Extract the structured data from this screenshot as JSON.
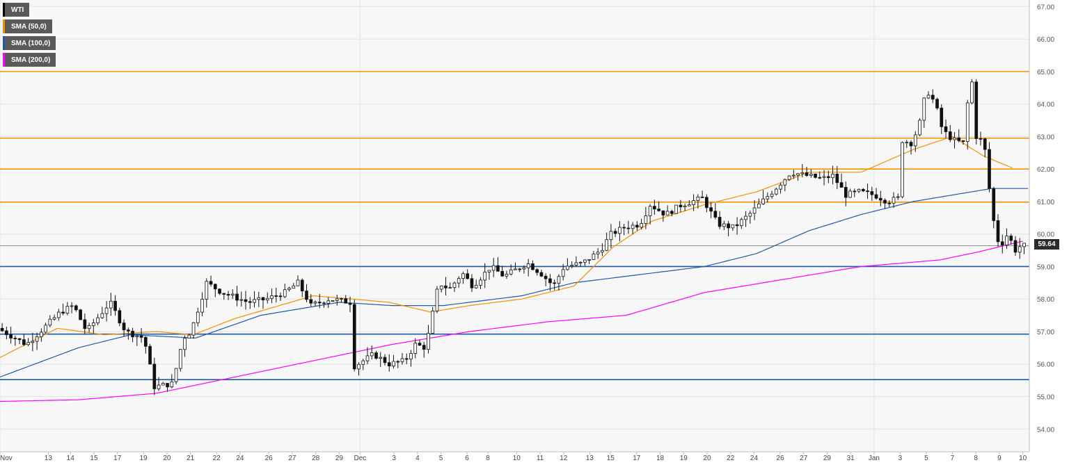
{
  "legend": [
    {
      "label": "WTI",
      "color": "#000000"
    },
    {
      "label": "SMA (50,0)",
      "color": "#f39200"
    },
    {
      "label": "SMA (100,0)",
      "color": "#1f5aa6"
    },
    {
      "label": "SMA (200,0)",
      "color": "#ff00ff"
    }
  ],
  "last_price_label": "59.64",
  "chart_data": {
    "type": "candlestick",
    "symbol": "WTI",
    "timeframe": "4H",
    "ylim": [
      53.3,
      67.2
    ],
    "y_ticks": [
      "54.00",
      "55.00",
      "56.00",
      "57.00",
      "58.00",
      "59.00",
      "60.00",
      "61.00",
      "62.00",
      "63.00",
      "64.00",
      "65.00",
      "66.00",
      "67.00"
    ],
    "x_ticks": [
      "Nov",
      "13",
      "14",
      "15",
      "17",
      "19",
      "20",
      "21",
      "22",
      "24",
      "26",
      "27",
      "28",
      "29",
      "Dec",
      "3",
      "4",
      "5",
      "6",
      "8",
      "10",
      "11",
      "12",
      "13",
      "15",
      "17",
      "18",
      "19",
      "20",
      "22",
      "24",
      "26",
      "27",
      "29",
      "31",
      "Jan",
      "3",
      "5",
      "7",
      "8",
      "9",
      "10"
    ],
    "x_ticks_day_index": [
      0,
      1.85,
      2.7,
      3.6,
      4.5,
      5.5,
      6.4,
      7.3,
      8.3,
      9.2,
      10.3,
      11.2,
      12.1,
      13.0,
      13.8,
      15.1,
      16.0,
      16.9,
      17.9,
      18.7,
      19.8,
      20.7,
      21.6,
      22.6,
      23.4,
      24.4,
      25.3,
      26.2,
      27.1,
      28.0,
      28.9,
      29.9,
      30.8,
      31.7,
      32.6,
      33.5,
      34.5,
      35.5,
      36.5,
      37.4,
      38.3,
      39.2
    ],
    "horizontal_levels": [
      {
        "value": 65.0,
        "color": "#f39200"
      },
      {
        "value": 62.95,
        "color": "#f39200"
      },
      {
        "value": 62.0,
        "color": "#f39200"
      },
      {
        "value": 60.98,
        "color": "#f39200"
      },
      {
        "value": 59.0,
        "color": "#1f5aa6"
      },
      {
        "value": 56.92,
        "color": "#1f5aa6"
      },
      {
        "value": 55.52,
        "color": "#1f5aa6"
      }
    ],
    "last_price": 59.64,
    "anchors": [
      [
        0,
        57.1
      ],
      [
        1.1,
        56.6
      ],
      [
        2.4,
        57.6
      ],
      [
        2.9,
        57.8
      ],
      [
        3.4,
        57.0
      ],
      [
        4.3,
        57.9
      ],
      [
        4.9,
        57.0
      ],
      [
        5.6,
        56.8
      ],
      [
        6.0,
        55.3
      ],
      [
        6.7,
        55.4
      ],
      [
        7.1,
        56.8
      ],
      [
        7.4,
        57.0
      ],
      [
        8.0,
        58.5
      ],
      [
        8.6,
        58.2
      ],
      [
        9.6,
        57.9
      ],
      [
        10.3,
        58.0
      ],
      [
        11.0,
        58.2
      ],
      [
        11.5,
        58.5
      ],
      [
        12.0,
        57.8
      ],
      [
        12.7,
        58.0
      ],
      [
        13.5,
        57.9
      ],
      [
        13.6,
        55.9
      ],
      [
        14.4,
        56.3
      ],
      [
        15.0,
        56.0
      ],
      [
        15.6,
        56.1
      ],
      [
        16.0,
        56.6
      ],
      [
        16.4,
        56.5
      ],
      [
        16.9,
        58.5
      ],
      [
        17.3,
        58.3
      ],
      [
        17.8,
        58.8
      ],
      [
        18.2,
        58.4
      ],
      [
        18.9,
        59.0
      ],
      [
        19.4,
        58.7
      ],
      [
        20.3,
        59.1
      ],
      [
        20.8,
        58.8
      ],
      [
        21.3,
        58.4
      ],
      [
        21.7,
        59.0
      ],
      [
        22.4,
        59.1
      ],
      [
        23.1,
        59.5
      ],
      [
        23.5,
        60.0
      ],
      [
        24.0,
        60.2
      ],
      [
        24.6,
        60.3
      ],
      [
        25.0,
        60.9
      ],
      [
        25.6,
        60.6
      ],
      [
        26.2,
        60.9
      ],
      [
        27.0,
        61.1
      ],
      [
        27.6,
        60.3
      ],
      [
        28.2,
        60.2
      ],
      [
        28.8,
        60.6
      ],
      [
        29.3,
        61.0
      ],
      [
        29.8,
        61.4
      ],
      [
        30.4,
        61.9
      ],
      [
        31.0,
        61.8
      ],
      [
        31.6,
        61.7
      ],
      [
        32.0,
        61.8
      ],
      [
        32.5,
        61.2
      ],
      [
        33.0,
        61.3
      ],
      [
        33.6,
        61.2
      ],
      [
        34.1,
        61.0
      ],
      [
        34.5,
        61.1
      ],
      [
        34.6,
        62.9
      ],
      [
        35.0,
        62.8
      ],
      [
        35.3,
        63.3
      ],
      [
        35.5,
        64.1
      ],
      [
        35.7,
        64.4
      ],
      [
        36.0,
        63.8
      ],
      [
        36.2,
        63.2
      ],
      [
        36.6,
        62.9
      ],
      [
        37.0,
        62.8
      ],
      [
        37.3,
        65.0
      ],
      [
        37.5,
        63.0
      ],
      [
        37.8,
        62.8
      ],
      [
        38.0,
        61.4
      ],
      [
        38.2,
        60.2
      ],
      [
        38.4,
        59.6
      ],
      [
        38.7,
        60.0
      ],
      [
        39.0,
        59.5
      ],
      [
        39.2,
        59.64
      ]
    ],
    "sma50_anchors": [
      [
        0,
        56.2
      ],
      [
        2.2,
        57.1
      ],
      [
        4,
        56.9
      ],
      [
        6,
        57.0
      ],
      [
        7.4,
        56.9
      ],
      [
        9,
        57.4
      ],
      [
        12,
        58.1
      ],
      [
        13.5,
        58.0
      ],
      [
        14.9,
        57.9
      ],
      [
        16.5,
        57.6
      ],
      [
        18,
        57.8
      ],
      [
        20,
        58.0
      ],
      [
        22,
        58.4
      ],
      [
        23.5,
        59.6
      ],
      [
        25,
        60.4
      ],
      [
        27,
        60.9
      ],
      [
        29,
        61.3
      ],
      [
        31,
        61.9
      ],
      [
        33,
        61.9
      ],
      [
        35,
        62.6
      ],
      [
        36.5,
        63.0
      ],
      [
        37.7,
        62.4
      ],
      [
        38.9,
        62.0
      ]
    ],
    "sma100_anchors": [
      [
        0,
        55.6
      ],
      [
        3,
        56.5
      ],
      [
        5,
        56.9
      ],
      [
        7.5,
        56.8
      ],
      [
        10,
        57.5
      ],
      [
        13,
        57.9
      ],
      [
        15,
        57.8
      ],
      [
        17,
        57.8
      ],
      [
        20,
        58.1
      ],
      [
        22,
        58.5
      ],
      [
        24,
        58.7
      ],
      [
        27,
        59.0
      ],
      [
        29,
        59.4
      ],
      [
        31,
        60.1
      ],
      [
        33,
        60.6
      ],
      [
        35,
        61.0
      ],
      [
        36.5,
        61.2
      ],
      [
        38,
        61.4
      ],
      [
        39.5,
        61.4
      ]
    ],
    "sma200_anchors": [
      [
        0,
        54.85
      ],
      [
        3,
        54.9
      ],
      [
        6,
        55.1
      ],
      [
        9,
        55.6
      ],
      [
        12,
        56.1
      ],
      [
        15,
        56.6
      ],
      [
        18,
        57.0
      ],
      [
        21,
        57.3
      ],
      [
        24,
        57.5
      ],
      [
        27,
        58.2
      ],
      [
        30,
        58.6
      ],
      [
        33,
        59.0
      ],
      [
        36,
        59.2
      ],
      [
        37.5,
        59.45
      ],
      [
        39.3,
        59.8
      ]
    ]
  }
}
